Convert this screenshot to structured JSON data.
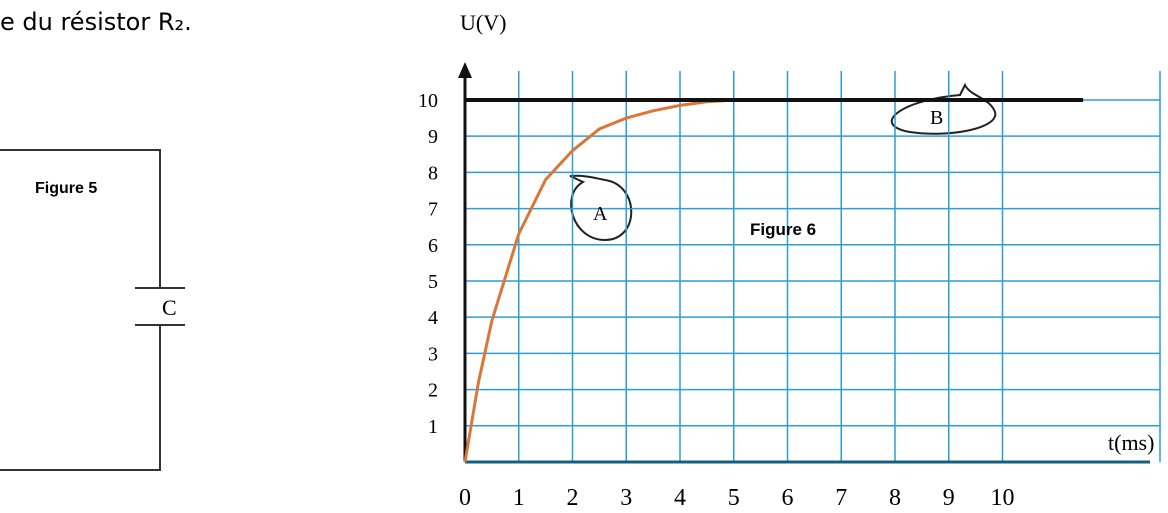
{
  "header": {
    "text": "e du résistor R₂."
  },
  "figure5": {
    "caption": "Figure 5",
    "component": "C"
  },
  "chart_data": {
    "type": "line",
    "y_label": "U(V)",
    "x_label": "t(ms)",
    "caption": "Figure 6",
    "xlim": [
      0,
      12
    ],
    "ylim": [
      0,
      10.8
    ],
    "xticks": [
      0,
      1,
      2,
      3,
      4,
      5,
      6,
      7,
      8,
      9,
      10
    ],
    "yticks": [
      1,
      2,
      3,
      4,
      5,
      6,
      7,
      8,
      9,
      10
    ],
    "grid": true,
    "grid_color": "#2a9fd6",
    "series": [
      {
        "name": "A",
        "color": "#d9773a",
        "x": [
          0,
          0.25,
          0.5,
          1,
          1.5,
          2,
          2.5,
          3,
          3.5,
          4,
          4.5,
          5
        ],
        "values": [
          0,
          2.2,
          3.9,
          6.3,
          7.8,
          8.6,
          9.2,
          9.5,
          9.7,
          9.85,
          9.95,
          10
        ]
      },
      {
        "name": "B",
        "color": "#111111",
        "x": [
          0,
          11.5
        ],
        "values": [
          10,
          10
        ]
      }
    ]
  }
}
